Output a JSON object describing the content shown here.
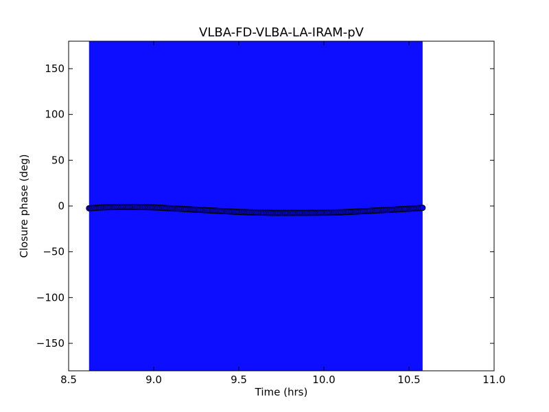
{
  "chart_data": {
    "type": "scatter",
    "title": "VLBA-FD-VLBA-LA-IRAM-pV",
    "xlabel": "Time (hrs)",
    "ylabel": "Closure phase (deg)",
    "xlim": [
      8.5,
      11.0
    ],
    "ylim": [
      -180,
      180
    ],
    "xticks": [
      8.5,
      9.0,
      9.5,
      10.0,
      10.5,
      11.0
    ],
    "xtick_labels": [
      "8.5",
      "9.0",
      "9.5",
      "10.0",
      "10.5",
      "11.0"
    ],
    "yticks": [
      150,
      100,
      50,
      0,
      -50,
      -100,
      -150
    ],
    "ytick_labels": [
      "150",
      "100",
      "50",
      "0",
      "−50",
      "−100",
      "−150"
    ],
    "grid": false,
    "error_band": {
      "x_start": 8.62,
      "x_end": 10.58,
      "y_low": -180,
      "y_high": 180,
      "color": "#0000ff"
    },
    "series": [
      {
        "marker_color": "#0000ff",
        "marker_edge": "#000000",
        "x": [
          8.62,
          8.7,
          8.8,
          8.9,
          9.0,
          9.1,
          9.2,
          9.3,
          9.4,
          9.5,
          9.6,
          9.7,
          9.8,
          9.9,
          10.0,
          10.1,
          10.2,
          10.3,
          10.4,
          10.5,
          10.58
        ],
        "y": [
          -2.5,
          -1.5,
          -1.0,
          -1.0,
          -1.5,
          -2.5,
          -3.5,
          -4.5,
          -5.5,
          -6.5,
          -7.0,
          -7.5,
          -7.5,
          -7.5,
          -7.3,
          -6.8,
          -6.0,
          -5.0,
          -4.0,
          -3.0,
          -2.0
        ]
      }
    ]
  }
}
